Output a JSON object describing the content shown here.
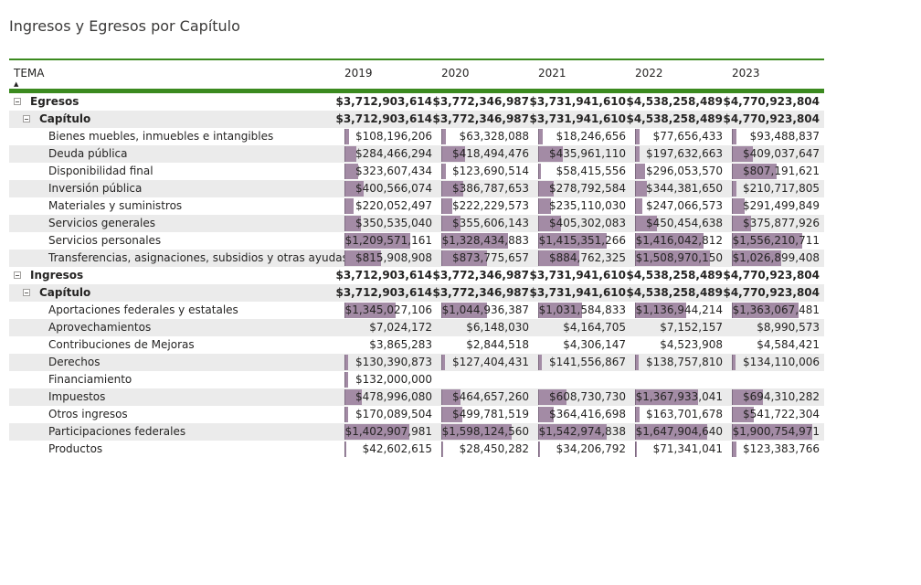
{
  "title": "Ingresos y Egresos por Capítulo",
  "header": {
    "tema": "TEMA",
    "sort_icon": "sort-ascending-icon",
    "years": [
      "2019",
      "2020",
      "2021",
      "2022",
      "2023"
    ]
  },
  "colors": {
    "accent": "#3b8a1f",
    "databar": "#a38ba5",
    "alt_row": "#ebebeb"
  },
  "rows": [
    {
      "label": "Egresos",
      "level": 0,
      "expander": true,
      "bold": true,
      "values": [
        "$3,712,903,614",
        "$3,772,346,987",
        "$3,731,941,610",
        "$4,538,258,489",
        "$4,770,923,804"
      ],
      "bars": [
        null,
        null,
        null,
        null,
        null
      ]
    },
    {
      "label": "Capítulo",
      "level": 1,
      "expander": true,
      "bold": true,
      "values": [
        "$3,712,903,614",
        "$3,772,346,987",
        "$3,731,941,610",
        "$4,538,258,489",
        "$4,770,923,804"
      ],
      "bars": [
        null,
        null,
        null,
        null,
        null
      ]
    },
    {
      "label": "Bienes muebles, inmuebles e intangibles",
      "level": 2,
      "values": [
        "$108,196,206",
        "$63,328,088",
        "$18,246,656",
        "$77,656,433",
        "$93,488,837"
      ],
      "bars": [
        0.05,
        0.05,
        0.05,
        0.05,
        0.05
      ]
    },
    {
      "label": "Deuda pública",
      "level": 2,
      "values": [
        "$284,466,294",
        "$418,494,476",
        "$435,961,110",
        "$197,632,663",
        "$409,037,647"
      ],
      "bars": [
        0.14,
        0.27,
        0.28,
        0.05,
        0.24
      ]
    },
    {
      "label": "Disponibilidad final",
      "level": 2,
      "values": [
        "$323,607,434",
        "$123,690,514",
        "$58,415,556",
        "$296,053,570",
        "$807,191,621"
      ],
      "bars": [
        0.16,
        0.05,
        0.03,
        0.11,
        0.51
      ]
    },
    {
      "label": "Inversión pública",
      "level": 2,
      "values": [
        "$400,566,074",
        "$386,787,653",
        "$278,792,584",
        "$344,381,650",
        "$210,717,805"
      ],
      "bars": [
        0.22,
        0.25,
        0.18,
        0.14,
        0.05
      ]
    },
    {
      "label": "Materiales y suministros",
      "level": 2,
      "values": [
        "$220,052,497",
        "$222,229,573",
        "$235,110,030",
        "$247,066,573",
        "$291,499,849"
      ],
      "bars": [
        0.1,
        0.13,
        0.15,
        0.08,
        0.15
      ]
    },
    {
      "label": "Servicios generales",
      "level": 2,
      "values": [
        "$350,535,040",
        "$355,606,143",
        "$405,302,083",
        "$450,454,638",
        "$375,877,926"
      ],
      "bars": [
        0.19,
        0.22,
        0.26,
        0.25,
        0.22
      ]
    },
    {
      "label": "Servicios personales",
      "level": 2,
      "values": [
        "$1,209,571,161",
        "$1,328,434,883",
        "$1,415,351,266",
        "$1,416,042,812",
        "$1,556,210,711"
      ],
      "bars": [
        0.75,
        0.76,
        0.78,
        0.78,
        0.8
      ]
    },
    {
      "label": "Transferencias, asignaciones, subsidios y otras ayudas",
      "level": 2,
      "values": [
        "$815,908,908",
        "$873,775,657",
        "$884,762,325",
        "$1,508,970,150",
        "$1,026,899,408"
      ],
      "bars": [
        0.42,
        0.52,
        0.47,
        0.85,
        0.56
      ]
    },
    {
      "label": "Ingresos",
      "level": 0,
      "expander": true,
      "bold": true,
      "values": [
        "$3,712,903,614",
        "$3,772,346,987",
        "$3,731,941,610",
        "$4,538,258,489",
        "$4,770,923,804"
      ],
      "bars": [
        null,
        null,
        null,
        null,
        null
      ]
    },
    {
      "label": "Capítulo",
      "level": 1,
      "expander": true,
      "bold": true,
      "values": [
        "$3,712,903,614",
        "$3,772,346,987",
        "$3,731,941,610",
        "$4,538,258,489",
        "$4,770,923,804"
      ],
      "bars": [
        null,
        null,
        null,
        null,
        null
      ]
    },
    {
      "label": "Aportaciones federales y estatales",
      "level": 2,
      "values": [
        "$1,345,027,106",
        "$1,044,936,387",
        "$1,031,584,833",
        "$1,136,944,214",
        "$1,363,067,481"
      ],
      "bars": [
        0.58,
        0.52,
        0.5,
        0.58,
        0.76
      ]
    },
    {
      "label": "Aprovechamientos",
      "level": 2,
      "values": [
        "$7,024,172",
        "$6,148,030",
        "$4,164,705",
        "$7,152,157",
        "$8,990,573"
      ],
      "bars": [
        null,
        null,
        null,
        null,
        null
      ]
    },
    {
      "label": "Contribuciones de Mejoras",
      "level": 2,
      "values": [
        "$3,865,283",
        "$2,844,518",
        "$4,306,147",
        "$4,523,908",
        "$4,584,421"
      ],
      "bars": [
        null,
        null,
        null,
        null,
        null
      ]
    },
    {
      "label": "Derechos",
      "level": 2,
      "values": [
        "$130,390,873",
        "$127,404,431",
        "$141,556,867",
        "$138,757,810",
        "$134,110,006"
      ],
      "bars": [
        0.04,
        0.04,
        0.04,
        0.04,
        0.04
      ]
    },
    {
      "label": "Financiamiento",
      "level": 2,
      "values": [
        "$132,000,000",
        "",
        "",
        "",
        ""
      ],
      "bars": [
        0.04,
        null,
        null,
        null,
        null
      ]
    },
    {
      "label": "Impuestos",
      "level": 2,
      "values": [
        "$478,996,080",
        "$464,657,260",
        "$608,730,730",
        "$1,367,933,041",
        "$694,310,282"
      ],
      "bars": [
        0.2,
        0.22,
        0.32,
        0.72,
        0.35
      ]
    },
    {
      "label": "Otros ingresos",
      "level": 2,
      "values": [
        "$170,089,504",
        "$499,781,519",
        "$364,416,698",
        "$163,701,678",
        "$541,722,304"
      ],
      "bars": [
        0.04,
        0.24,
        0.18,
        0.05,
        0.25
      ]
    },
    {
      "label": "Participaciones federales",
      "level": 2,
      "values": [
        "$1,402,907,981",
        "$1,598,124,560",
        "$1,542,974,838",
        "$1,647,904,640",
        "$1,900,754,971"
      ],
      "bars": [
        0.74,
        0.8,
        0.78,
        0.82,
        0.92
      ]
    },
    {
      "label": "Productos",
      "level": 2,
      "values": [
        "$42,602,615",
        "$28,450,282",
        "$34,206,792",
        "$71,341,041",
        "$123,383,766"
      ],
      "bars": [
        0.02,
        0.02,
        0.02,
        0.02,
        0.05
      ]
    }
  ]
}
